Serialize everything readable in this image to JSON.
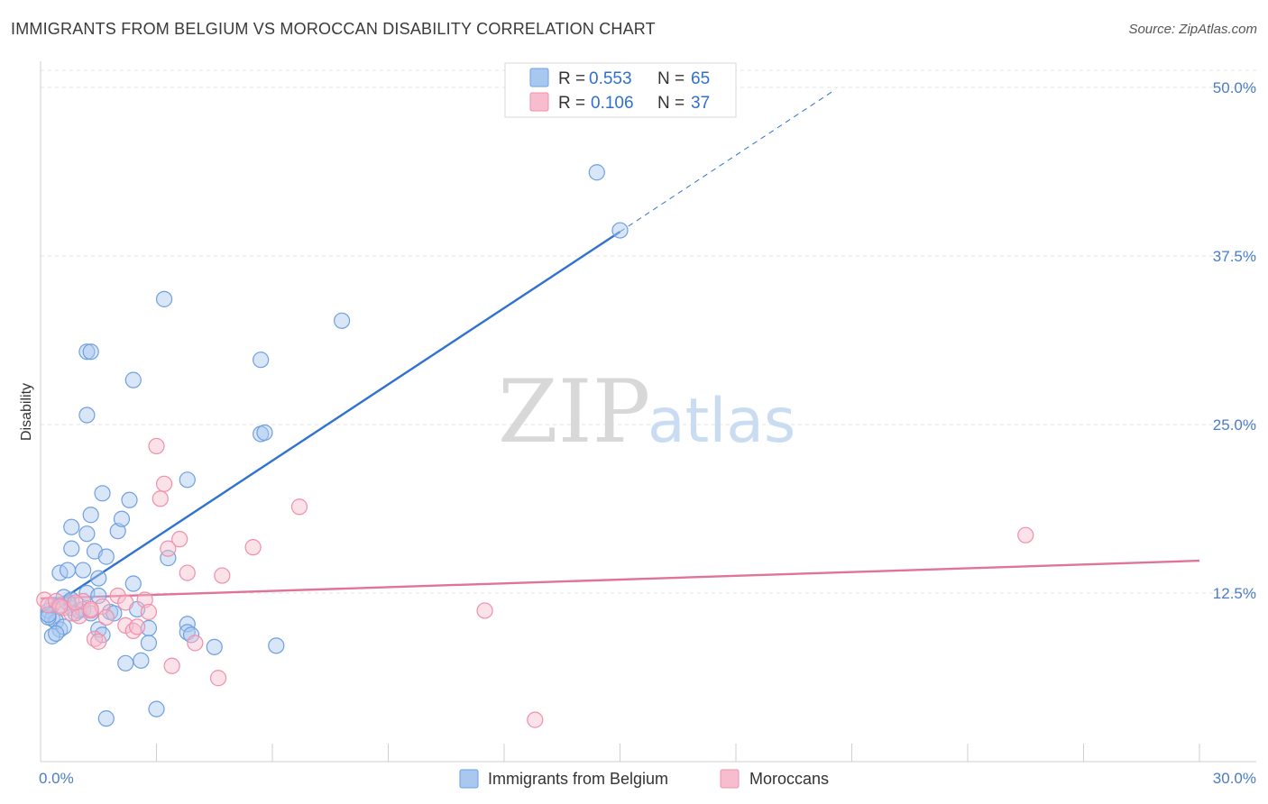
{
  "header": {
    "title": "IMMIGRANTS FROM BELGIUM VS MOROCCAN DISABILITY CORRELATION CHART",
    "source": "Source: ZipAtlas.com"
  },
  "watermark": {
    "zip": "ZIP",
    "atlas": "atlas"
  },
  "legend": {
    "rows": [
      {
        "r_label": "R =",
        "r_value": "0.553",
        "n_label": "N =",
        "n_value": "65",
        "color": "#a9c8f0"
      },
      {
        "r_label": "R =",
        "r_value": "0.106",
        "n_label": "N =",
        "n_value": "37",
        "color": "#f7bccd"
      }
    ]
  },
  "bottom_legend": [
    {
      "label": "Immigrants from Belgium",
      "color": "#a9c8f0"
    },
    {
      "label": "Moroccans",
      "color": "#f7bccd"
    }
  ],
  "chart_data": {
    "type": "scatter",
    "ylabel": "Disability",
    "xlim": [
      0,
      30
    ],
    "ylim": [
      0,
      50
    ],
    "x_tick_labels": [
      {
        "value": 0,
        "label": "0.0%"
      },
      {
        "value": 30,
        "label": "30.0%"
      }
    ],
    "y_tick_labels": [
      {
        "value": 12.5,
        "label": "12.5%"
      },
      {
        "value": 25,
        "label": "25.0%"
      },
      {
        "value": 37.5,
        "label": "37.5%"
      },
      {
        "value": 50,
        "label": "50.0%"
      }
    ],
    "grid": true,
    "legend_position": "top-center",
    "series": [
      {
        "name": "Immigrants from Belgium",
        "color": "#6ea0e0",
        "fill": "#a9c8f0",
        "trend": {
          "x0": 0,
          "y0": 11,
          "x1": 15,
          "y1": 39.3,
          "dash_to_x": 20.5,
          "dash_to_y": 49.7,
          "color": "#2f72d0"
        },
        "points": [
          [
            0.2,
            11.2
          ],
          [
            0.3,
            10.6
          ],
          [
            0.4,
            10.4
          ],
          [
            0.5,
            9.8
          ],
          [
            0.3,
            9.3
          ],
          [
            0.6,
            10.0
          ],
          [
            0.2,
            10.7
          ],
          [
            0.8,
            11.4
          ],
          [
            0.7,
            11.8
          ],
          [
            0.5,
            11.6
          ],
          [
            0.9,
            11.0
          ],
          [
            1.0,
            11.2
          ],
          [
            1.1,
            11.3
          ],
          [
            1.3,
            11.0
          ],
          [
            1.2,
            12.5
          ],
          [
            0.6,
            12.2
          ],
          [
            0.8,
            12.0
          ],
          [
            0.5,
            14.0
          ],
          [
            0.7,
            14.2
          ],
          [
            1.1,
            14.2
          ],
          [
            1.5,
            13.6
          ],
          [
            1.5,
            12.3
          ],
          [
            2.4,
            13.2
          ],
          [
            2.5,
            11.3
          ],
          [
            0.8,
            15.8
          ],
          [
            1.4,
            15.6
          ],
          [
            1.7,
            15.2
          ],
          [
            0.8,
            17.4
          ],
          [
            1.2,
            16.9
          ],
          [
            2.0,
            17.1
          ],
          [
            2.1,
            18.0
          ],
          [
            1.3,
            18.3
          ],
          [
            1.6,
            19.9
          ],
          [
            2.3,
            19.4
          ],
          [
            3.3,
            15.1
          ],
          [
            3.8,
            20.9
          ],
          [
            1.5,
            9.8
          ],
          [
            1.6,
            9.4
          ],
          [
            2.8,
            9.9
          ],
          [
            2.8,
            8.8
          ],
          [
            3.8,
            10.2
          ],
          [
            3.8,
            9.6
          ],
          [
            3.9,
            9.4
          ],
          [
            4.5,
            8.5
          ],
          [
            6.1,
            8.6
          ],
          [
            2.2,
            7.3
          ],
          [
            2.6,
            7.5
          ],
          [
            1.7,
            3.2
          ],
          [
            3.0,
            3.9
          ],
          [
            1.2,
            25.7
          ],
          [
            1.2,
            30.4
          ],
          [
            1.3,
            30.4
          ],
          [
            2.4,
            28.3
          ],
          [
            3.2,
            34.3
          ],
          [
            5.7,
            24.3
          ],
          [
            5.8,
            24.4
          ],
          [
            5.7,
            29.8
          ],
          [
            7.8,
            32.7
          ],
          [
            15.0,
            39.4
          ],
          [
            14.4,
            43.7
          ],
          [
            0.3,
            11.6
          ],
          [
            0.2,
            10.9
          ],
          [
            0.4,
            9.5
          ],
          [
            1.8,
            11.1
          ],
          [
            1.9,
            11.0
          ]
        ]
      },
      {
        "name": "Moroccans",
        "color": "#ef8fab",
        "fill": "#f7bccd",
        "trend": {
          "x0": 0,
          "y0": 12.1,
          "x1": 30,
          "y1": 14.9,
          "color": "#e0739a"
        },
        "points": [
          [
            0.1,
            12.0
          ],
          [
            0.2,
            11.6
          ],
          [
            0.4,
            11.9
          ],
          [
            0.6,
            11.4
          ],
          [
            0.8,
            11.0
          ],
          [
            1.0,
            10.8
          ],
          [
            1.1,
            11.9
          ],
          [
            1.3,
            11.2
          ],
          [
            1.6,
            11.5
          ],
          [
            1.7,
            10.7
          ],
          [
            1.4,
            9.1
          ],
          [
            1.5,
            8.9
          ],
          [
            2.0,
            12.3
          ],
          [
            2.2,
            11.8
          ],
          [
            2.2,
            10.1
          ],
          [
            2.4,
            9.7
          ],
          [
            2.5,
            10.0
          ],
          [
            2.7,
            12.0
          ],
          [
            2.8,
            11.1
          ],
          [
            3.0,
            23.4
          ],
          [
            3.2,
            20.6
          ],
          [
            3.1,
            19.5
          ],
          [
            3.3,
            15.8
          ],
          [
            3.6,
            16.5
          ],
          [
            3.8,
            14.0
          ],
          [
            4.0,
            8.8
          ],
          [
            3.4,
            7.1
          ],
          [
            4.6,
            6.2
          ],
          [
            4.7,
            13.8
          ],
          [
            5.5,
            15.9
          ],
          [
            6.7,
            18.9
          ],
          [
            11.5,
            11.2
          ],
          [
            12.8,
            3.1
          ],
          [
            25.5,
            16.8
          ],
          [
            1.3,
            11.3
          ],
          [
            0.9,
            11.8
          ],
          [
            0.5,
            11.5
          ]
        ]
      }
    ]
  }
}
